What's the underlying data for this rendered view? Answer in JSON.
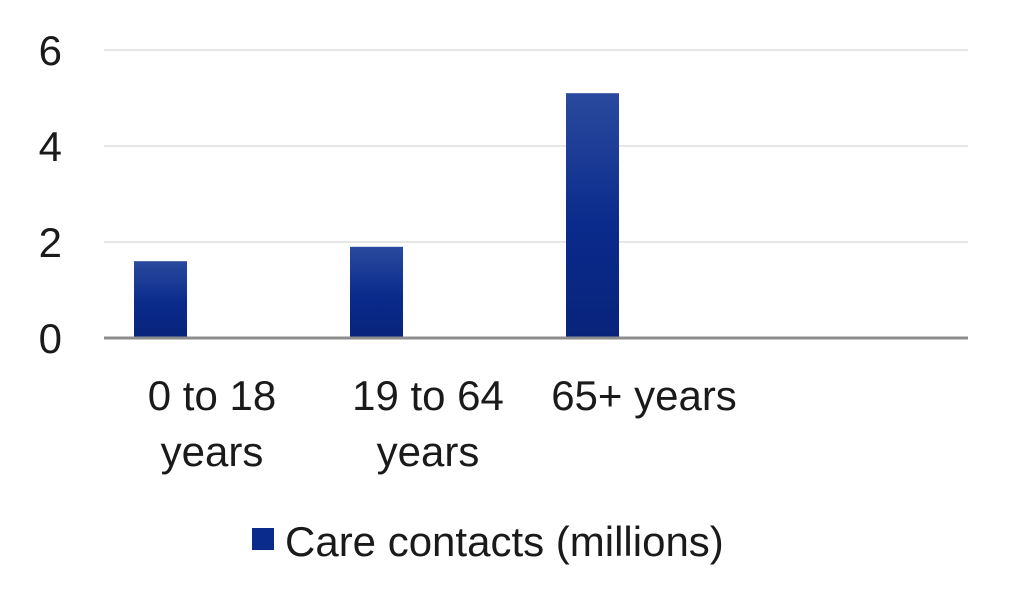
{
  "chart_data": {
    "type": "bar",
    "categories": [
      [
        "0 to 18",
        "years"
      ],
      [
        "19 to 64",
        "years"
      ],
      [
        "65+ years"
      ],
      [
        ""
      ]
    ],
    "series": [
      {
        "name": "Care contacts (millions)",
        "values": [
          1.6,
          1.9,
          5.1,
          null
        ],
        "color": "#0a2a8c"
      }
    ],
    "yticks": [
      0,
      2,
      4,
      6
    ],
    "ylim": [
      0,
      6
    ],
    "grid": true,
    "legend_position": "bottom",
    "gridline_color": "#e6e6e6",
    "axis_color": "#8c8c8c"
  }
}
